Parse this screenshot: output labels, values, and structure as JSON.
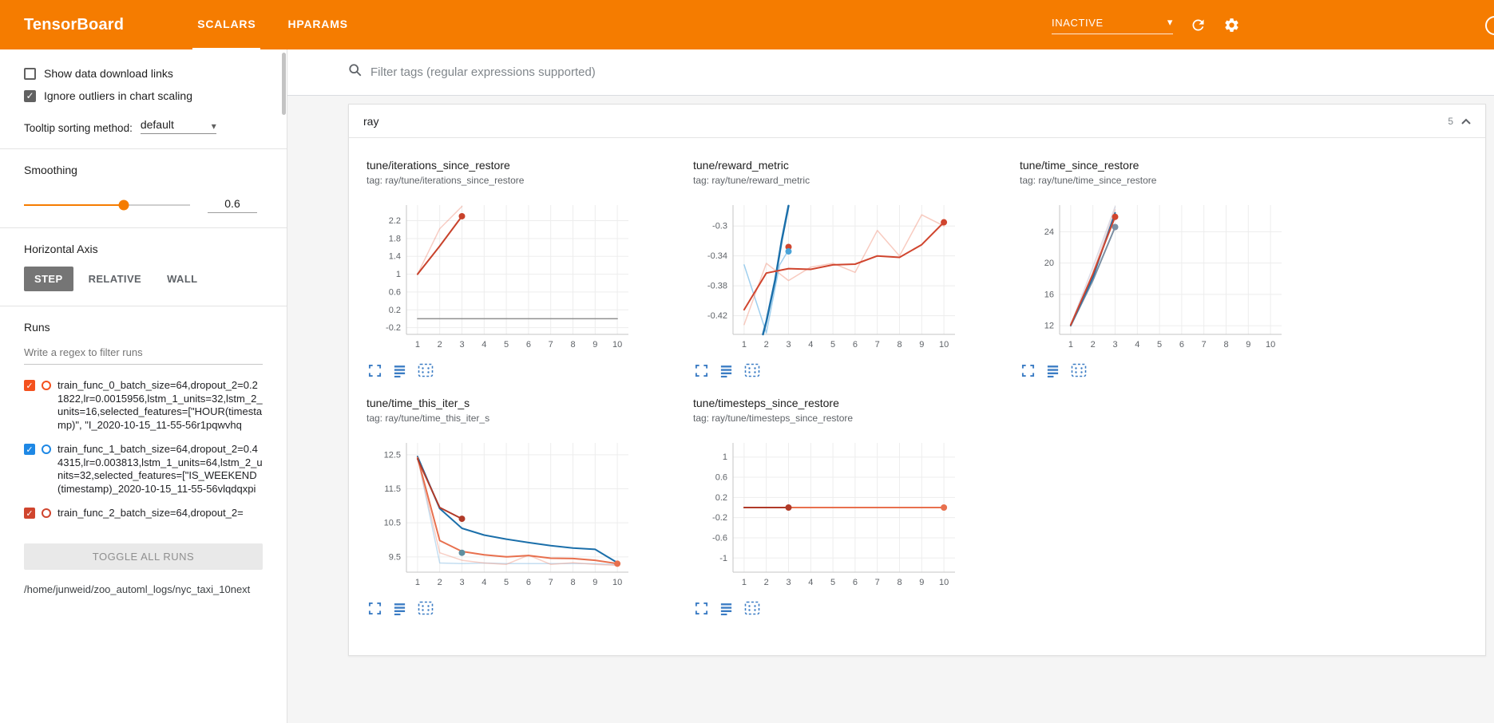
{
  "colors": {
    "header_bg": "#f57c00",
    "icon_blue": "#3b7cc4",
    "run_orange": "#f4511e",
    "run_blue": "#1e88e5"
  },
  "header": {
    "title": "TensorBoard",
    "tabs": [
      {
        "label": "SCALARS",
        "active": true
      },
      {
        "label": "HPARAMS",
        "active": false
      }
    ],
    "status_dropdown": "INACTIVE"
  },
  "sidebar": {
    "show_download_label": "Show data download links",
    "show_download_checked": false,
    "ignore_outliers_label": "Ignore outliers in chart scaling",
    "ignore_outliers_checked": true,
    "tooltip_sorting_label": "Tooltip sorting method:",
    "tooltip_sorting_value": "default",
    "smoothing_label": "Smoothing",
    "smoothing_value": "0.6",
    "horizontal_axis_label": "Horizontal Axis",
    "axis_options": [
      {
        "label": "STEP",
        "selected": true
      },
      {
        "label": "RELATIVE",
        "selected": false
      },
      {
        "label": "WALL",
        "selected": false
      }
    ],
    "runs_label": "Runs",
    "runs_filter_placeholder": "Write a regex to filter runs",
    "runs": [
      {
        "label": "train_func_0_batch_size=64,dropout_2=0.21822,lr=0.0015956,lstm_1_units=32,lstm_2_units=16,selected_features=[\"HOUR(timestamp)\", \"I_2020-10-15_11-55-56r1pqwvhq",
        "checked": true,
        "color": "#f4511e"
      },
      {
        "label": "train_func_1_batch_size=64,dropout_2=0.44315,lr=0.003813,lstm_1_units=64,lstm_2_units=32,selected_features=[\"IS_WEEKEND(timestamp)_2020-10-15_11-55-56vlqdqxpi",
        "checked": true,
        "color": "#1e88e5"
      },
      {
        "label": "train_func_2_batch_size=64,dropout_2=",
        "checked": true,
        "color": "#d0452e"
      }
    ],
    "toggle_all_label": "TOGGLE ALL RUNS",
    "log_path": "/home/junweid/zoo_automl_logs/nyc_taxi_10next"
  },
  "main": {
    "filter_placeholder": "Filter tags (regular expressions supported)",
    "group_name": "ray",
    "group_count": "5"
  },
  "chart_data": [
    {
      "type": "line",
      "title": "tune/iterations_since_restore",
      "tag": "tag: ray/tune/iterations_since_restore",
      "xlim": [
        0.5,
        10.5
      ],
      "ylim": [
        -0.35,
        2.55
      ],
      "xticks": [
        1,
        2,
        3,
        4,
        5,
        6,
        7,
        8,
        9,
        10
      ],
      "yticks": [
        -0.2,
        0.2,
        0.6,
        1,
        1.4,
        1.8,
        2.2
      ],
      "series": [
        {
          "name": "train_func_0 raw",
          "color": "#e8593a",
          "opacity": 0.3,
          "width": 1.5,
          "points": [
            [
              1,
              1.0
            ],
            [
              2,
              2.02
            ],
            [
              3,
              2.52
            ]
          ]
        },
        {
          "name": "train_func_0 smoothed",
          "color": "#c8422b",
          "opacity": 1,
          "width": 2,
          "points": [
            [
              1,
              1.0
            ],
            [
              2,
              1.63
            ],
            [
              3,
              2.3
            ]
          ],
          "end_dot": true
        },
        {
          "name": "zero run",
          "color": "#8a8a8a",
          "opacity": 0.95,
          "width": 1.5,
          "points": [
            [
              1,
              0
            ],
            [
              10,
              0
            ]
          ]
        }
      ]
    },
    {
      "type": "line",
      "title": "tune/reward_metric",
      "tag": "tag: ray/tune/reward_metric",
      "xlim": [
        0.5,
        10.5
      ],
      "ylim": [
        -0.445,
        -0.272
      ],
      "xticks": [
        1,
        2,
        3,
        4,
        5,
        6,
        7,
        8,
        9,
        10
      ],
      "yticks": [
        -0.42,
        -0.38,
        -0.34,
        -0.3
      ],
      "series": [
        {
          "name": "light blue raw",
          "color": "#7fbfe8",
          "opacity": 0.75,
          "width": 1.5,
          "points": [
            [
              1,
              -0.352
            ],
            [
              2,
              -0.443
            ],
            [
              2.6,
              -0.352
            ],
            [
              3,
              -0.332
            ]
          ]
        },
        {
          "name": "dark blue",
          "color": "#1b6faa",
          "opacity": 1,
          "width": 2.5,
          "points": [
            [
              1.85,
              -0.445
            ],
            [
              2,
              -0.428
            ],
            [
              2.4,
              -0.372
            ],
            [
              2.7,
              -0.318
            ],
            [
              3,
              -0.273
            ]
          ]
        },
        {
          "name": "orange raw",
          "color": "#f2a08c",
          "opacity": 0.55,
          "width": 1.5,
          "points": [
            [
              1,
              -0.432
            ],
            [
              2,
              -0.35
            ],
            [
              3,
              -0.373
            ],
            [
              4,
              -0.355
            ],
            [
              5,
              -0.35
            ],
            [
              6,
              -0.362
            ],
            [
              7,
              -0.306
            ],
            [
              8,
              -0.34
            ],
            [
              9,
              -0.285
            ],
            [
              10,
              -0.3
            ]
          ]
        },
        {
          "name": "red smoothed",
          "color": "#d0452e",
          "opacity": 1,
          "width": 2,
          "points": [
            [
              1,
              -0.412
            ],
            [
              2,
              -0.363
            ],
            [
              3,
              -0.357
            ],
            [
              4,
              -0.358
            ],
            [
              5,
              -0.352
            ],
            [
              6,
              -0.351
            ],
            [
              7,
              -0.34
            ],
            [
              8,
              -0.342
            ],
            [
              9,
              -0.325
            ],
            [
              10,
              -0.295
            ]
          ],
          "end_dot": true
        }
      ],
      "dots": [
        {
          "x": 3,
          "y": -0.328,
          "color": "#d0452e"
        },
        {
          "x": 3,
          "y": -0.334,
          "color": "#4aa3d8"
        }
      ]
    },
    {
      "type": "line",
      "title": "tune/time_since_restore",
      "tag": "tag: ray/tune/time_since_restore",
      "xlim": [
        0.5,
        10.5
      ],
      "ylim": [
        10.9,
        27.4
      ],
      "xticks": [
        1,
        2,
        3,
        4,
        5,
        6,
        7,
        8,
        9,
        10
      ],
      "yticks": [
        12,
        16,
        20,
        24
      ],
      "series": [
        {
          "name": "lavender raw",
          "color": "#b9b9cf",
          "opacity": 0.5,
          "width": 1.5,
          "points": [
            [
              1,
              12.1
            ],
            [
              2,
              19.5
            ],
            [
              3,
              27.2
            ]
          ]
        },
        {
          "name": "pink raw",
          "color": "#e8a9a0",
          "opacity": 0.5,
          "width": 1.5,
          "points": [
            [
              1,
              12.0
            ],
            [
              2,
              18.8
            ],
            [
              3,
              26.8
            ]
          ]
        },
        {
          "name": "slate smoothed",
          "color": "#7b8fa3",
          "opacity": 1,
          "width": 2,
          "points": [
            [
              1,
              12.0
            ],
            [
              2,
              17.8
            ],
            [
              3,
              24.6
            ]
          ],
          "end_dot": true
        },
        {
          "name": "blue",
          "color": "#1b6faa",
          "opacity": 1,
          "width": 2,
          "points": [
            [
              1,
              12.05
            ],
            [
              2,
              18.2
            ],
            [
              3,
              26.4
            ]
          ]
        },
        {
          "name": "red",
          "color": "#d0452e",
          "opacity": 1,
          "width": 2,
          "points": [
            [
              1,
              12.1
            ],
            [
              2,
              18.6
            ],
            [
              3,
              25.9
            ]
          ],
          "end_dot": true
        }
      ]
    },
    {
      "type": "line",
      "title": "tune/time_this_iter_s",
      "tag": "tag: ray/tune/time_this_iter_s",
      "xlim": [
        0.5,
        10.5
      ],
      "ylim": [
        9.05,
        12.85
      ],
      "xticks": [
        1,
        2,
        3,
        4,
        5,
        6,
        7,
        8,
        9,
        10
      ],
      "yticks": [
        9.5,
        10.5,
        11.5,
        12.5
      ],
      "series": [
        {
          "name": "light blue raw",
          "color": "#9cc8e8",
          "opacity": 0.6,
          "width": 1.5,
          "points": [
            [
              1,
              12.45
            ],
            [
              2,
              9.32
            ],
            [
              3,
              9.3
            ],
            [
              4,
              9.32
            ],
            [
              5,
              9.3
            ],
            [
              6,
              9.3
            ],
            [
              7,
              9.3
            ],
            [
              8,
              9.3
            ],
            [
              9,
              9.3
            ],
            [
              10,
              9.27
            ]
          ]
        },
        {
          "name": "pink raw",
          "color": "#f2a08c",
          "opacity": 0.5,
          "width": 1.5,
          "points": [
            [
              1,
              12.4
            ],
            [
              2,
              9.62
            ],
            [
              3,
              9.4
            ],
            [
              4,
              9.32
            ],
            [
              5,
              9.28
            ],
            [
              6,
              9.55
            ],
            [
              7,
              9.28
            ],
            [
              8,
              9.33
            ],
            [
              9,
              9.28
            ],
            [
              10,
              9.25
            ]
          ]
        },
        {
          "name": "blue smoothed",
          "color": "#1b6faa",
          "opacity": 1,
          "width": 2,
          "points": [
            [
              1,
              12.45
            ],
            [
              2,
              10.92
            ],
            [
              3,
              10.34
            ],
            [
              4,
              10.14
            ],
            [
              5,
              10.02
            ],
            [
              6,
              9.92
            ],
            [
              7,
              9.83
            ],
            [
              8,
              9.76
            ],
            [
              9,
              9.72
            ],
            [
              10,
              9.33
            ]
          ]
        },
        {
          "name": "orange smoothed",
          "color": "#e8704e",
          "opacity": 1,
          "width": 2,
          "points": [
            [
              1,
              12.42
            ],
            [
              2,
              9.98
            ],
            [
              3,
              9.66
            ],
            [
              4,
              9.56
            ],
            [
              5,
              9.5
            ],
            [
              6,
              9.54
            ],
            [
              7,
              9.46
            ],
            [
              8,
              9.45
            ],
            [
              9,
              9.4
            ],
            [
              10,
              9.3
            ]
          ],
          "end_dot": true
        },
        {
          "name": "dark red",
          "color": "#b03a28",
          "opacity": 1,
          "width": 2,
          "points": [
            [
              1,
              12.38
            ],
            [
              2,
              10.95
            ],
            [
              3,
              10.62
            ]
          ],
          "end_dot": true
        }
      ],
      "dots": [
        {
          "x": 3,
          "y": 9.62,
          "color": "#5e8fa0"
        }
      ]
    },
    {
      "type": "line",
      "title": "tune/timesteps_since_restore",
      "tag": "tag: ray/tune/timesteps_since_restore",
      "xlim": [
        0.5,
        10.5
      ],
      "ylim": [
        -1.28,
        1.28
      ],
      "xticks": [
        1,
        2,
        3,
        4,
        5,
        6,
        7,
        8,
        9,
        10
      ],
      "yticks": [
        -1,
        -0.6,
        -0.2,
        0.2,
        0.6,
        1
      ],
      "series": [
        {
          "name": "gray",
          "color": "#9e9e9e",
          "opacity": 0.9,
          "width": 1.5,
          "points": [
            [
              1,
              0
            ],
            [
              10,
              0
            ]
          ]
        },
        {
          "name": "orange",
          "color": "#e8704e",
          "opacity": 1,
          "width": 2,
          "points": [
            [
              1,
              0
            ],
            [
              10,
              0
            ]
          ],
          "end_dot": true
        },
        {
          "name": "dark red",
          "color": "#b03a28",
          "opacity": 1,
          "width": 2,
          "points": [
            [
              1,
              0
            ],
            [
              3,
              0
            ]
          ],
          "end_dot": true
        }
      ]
    }
  ]
}
